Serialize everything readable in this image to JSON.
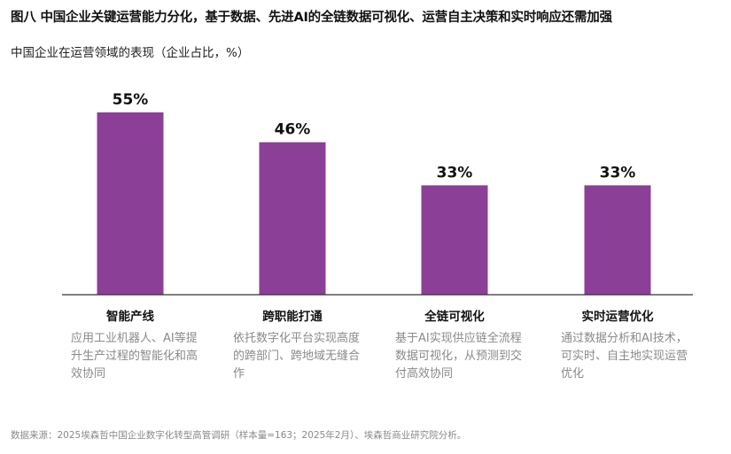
{
  "title": "图八 中国企业关键运营能力分化，基于数据、先进AI的全链数据可视化、运营自主决策和实时响应还需加强",
  "subtitle": "中国企业在运营领域的表现（企业占比，%）",
  "source": "数据来源：2025埃森哲中国企业数字化转型高管调研（样本量=163；2025年2月）、埃森哲商业研究院分析。",
  "colors": {
    "bar": "#8c3f96",
    "axis": "#333333",
    "value_text": "#111111"
  },
  "chart_data": {
    "type": "bar",
    "categories": [
      "智能产线",
      "跨职能打通",
      "全链可视化",
      "实时运营优化"
    ],
    "values": [
      55,
      46,
      33,
      33
    ],
    "value_labels": [
      "55%",
      "46%",
      "33%",
      "33%"
    ],
    "descriptions": [
      "应用工业机器人、AI等提升生产过程的智能化和高效协同",
      "依托数字化平台实现高度的跨部门、跨地域无缝合作",
      "基于AI实现供应链全流程数据可视化，从预测到交付高效协同",
      "通过数据分析和AI技术，可实时、自主地实现运营优化"
    ],
    "title": "",
    "xlabel": "",
    "ylabel": "",
    "ylim": [
      0,
      60
    ],
    "grid": false,
    "legend": "none"
  }
}
